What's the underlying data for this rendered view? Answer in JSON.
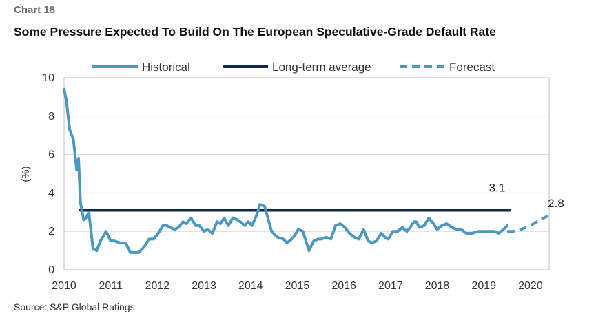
{
  "header": {
    "chart_label": "Chart 18",
    "title": "Some Pressure Expected To Build On The European Speculative-Grade Default Rate"
  },
  "source": "Source: S&P Global Ratings",
  "colors": {
    "historical": "#4a98c2",
    "long_term_average": "#0e2a4e",
    "forecast": "#4a98c2",
    "axis_text": "#333333",
    "frame": "#bfbfbf"
  },
  "chart_data": {
    "type": "line",
    "title": "Some Pressure Expected To Build On The European Speculative-Grade Default Rate",
    "xlabel": "",
    "ylabel": "(%)",
    "ylim": [
      0,
      10
    ],
    "xlim": [
      2010,
      2020.4
    ],
    "x_ticks": [
      "2010",
      "2011",
      "2012",
      "2013",
      "2014",
      "2015",
      "2016",
      "2017",
      "2018",
      "2019",
      "2020"
    ],
    "y_ticks": [
      "0",
      "2",
      "4",
      "6",
      "8",
      "10"
    ],
    "grid": true,
    "legend": {
      "position": "top",
      "entries": [
        "Historical",
        "Long-term average",
        "Forecast"
      ]
    },
    "series": [
      {
        "name": "Historical",
        "style": "solid",
        "x": [
          2010.0,
          2010.05,
          2010.12,
          2010.2,
          2010.27,
          2010.31,
          2010.35,
          2010.42,
          2010.47,
          2010.53,
          2010.62,
          2010.7,
          2010.78,
          2010.9,
          2011.0,
          2011.08,
          2011.2,
          2011.32,
          2011.42,
          2011.6,
          2011.72,
          2011.82,
          2011.92,
          2012.02,
          2012.12,
          2012.2,
          2012.28,
          2012.37,
          2012.45,
          2012.55,
          2012.62,
          2012.72,
          2012.82,
          2012.9,
          2013.0,
          2013.08,
          2013.18,
          2013.28,
          2013.35,
          2013.43,
          2013.52,
          2013.62,
          2013.72,
          2013.78,
          2013.87,
          2013.95,
          2014.03,
          2014.12,
          2014.2,
          2014.3,
          2014.45,
          2014.57,
          2014.7,
          2014.78,
          2014.88,
          2014.95,
          2015.02,
          2015.12,
          2015.25,
          2015.35,
          2015.45,
          2015.52,
          2015.62,
          2015.72,
          2015.82,
          2015.92,
          2016.02,
          2016.12,
          2016.22,
          2016.32,
          2016.42,
          2016.52,
          2016.6,
          2016.7,
          2016.8,
          2016.88,
          2016.95,
          2017.05,
          2017.15,
          2017.25,
          2017.35,
          2017.42,
          2017.5,
          2017.55,
          2017.62,
          2017.72,
          2017.82,
          2017.92,
          2018.0,
          2018.1,
          2018.2,
          2018.32,
          2018.42,
          2018.52,
          2018.62,
          2018.75,
          2018.88,
          2019.0,
          2019.12,
          2019.22,
          2019.32,
          2019.42,
          2019.5
        ],
        "y": [
          9.4,
          8.8,
          7.3,
          6.8,
          5.2,
          5.8,
          3.5,
          2.6,
          2.7,
          3.0,
          1.1,
          1.0,
          1.5,
          2.0,
          1.5,
          1.5,
          1.4,
          1.4,
          0.9,
          0.9,
          1.2,
          1.6,
          1.6,
          1.9,
          2.3,
          2.3,
          2.2,
          2.1,
          2.2,
          2.5,
          2.4,
          2.7,
          2.3,
          2.3,
          2.0,
          2.1,
          1.9,
          2.5,
          2.4,
          2.7,
          2.3,
          2.7,
          2.6,
          2.5,
          2.3,
          2.5,
          2.3,
          2.8,
          3.4,
          3.3,
          2.0,
          1.7,
          1.6,
          1.4,
          1.6,
          1.8,
          2.1,
          2.0,
          1.0,
          1.5,
          1.6,
          1.6,
          1.7,
          1.6,
          2.3,
          2.4,
          2.2,
          1.9,
          1.7,
          1.6,
          2.1,
          1.5,
          1.4,
          1.5,
          1.9,
          1.7,
          1.6,
          2.0,
          2.0,
          2.2,
          2.0,
          2.2,
          2.5,
          2.5,
          2.2,
          2.3,
          2.7,
          2.4,
          2.1,
          2.3,
          2.4,
          2.2,
          2.1,
          2.1,
          1.9,
          1.9,
          2.0,
          2.0,
          2.0,
          2.0,
          1.9,
          2.1,
          2.3
        ]
      },
      {
        "name": "Long-term average",
        "style": "solid",
        "x": [
          2010.35,
          2019.55
        ],
        "y": [
          3.1,
          3.1
        ],
        "label": "3.1"
      },
      {
        "name": "Forecast",
        "style": "dashed",
        "x": [
          2019.5,
          2019.62,
          2019.8,
          2020.0,
          2020.2,
          2020.37
        ],
        "y": [
          2.0,
          2.0,
          2.1,
          2.3,
          2.6,
          2.8
        ],
        "label": "2.8"
      }
    ]
  }
}
